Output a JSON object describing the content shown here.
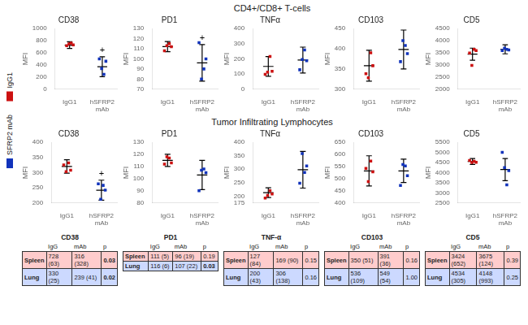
{
  "chart_data": {
    "series": [
      {
        "name": "IgG1",
        "color": "#cc1111"
      },
      {
        "name": "SFRP2 mAb",
        "color": "#1133bb"
      }
    ],
    "sections": [
      {
        "title": "CD4+/CD8+ T-cells",
        "charts": [
          {
            "type": "dot",
            "title": "CD38",
            "categories": [
              "IgG1",
              "hSFRP2\nmAb"
            ],
            "ylabel": "MFI",
            "ylim": [
              0,
              1000
            ],
            "yticks": [
              0,
              200,
              400,
              600,
              800,
              1000
            ],
            "grid": false,
            "marker": "square",
            "series": [
              {
                "color": "#cc1111",
                "values": [
                  715,
                  745,
                  760,
                  730
                ],
                "mean": 725,
                "sd": 55
              },
              {
                "color": "#1133bb",
                "values": [
                  500,
                  340,
                  245,
                  460
                ],
                "mean": 370,
                "sd": 165,
                "annotation": "+"
              }
            ]
          },
          {
            "type": "dot",
            "title": "PD1",
            "categories": [
              "IgG1",
              "hSFRP2\nmAb"
            ],
            "ylabel": "MFI",
            "ylim": [
              70,
              130
            ],
            "yticks": [
              70,
              80,
              90,
              100,
              110,
              120,
              130
            ],
            "grid": false,
            "marker": "square",
            "series": [
              {
                "color": "#cc1111",
                "values": [
                  108,
                  113,
                  115,
                  112
                ],
                "mean": 112,
                "sd": 5
              },
              {
                "color": "#1133bb",
                "values": [
                  116,
                  80,
                  90,
                  100
                ],
                "mean": 96,
                "sd": 18,
                "annotation": "+"
              }
            ]
          },
          {
            "type": "dot",
            "title": "TNFα",
            "categories": [
              "IgG1",
              "hSFRP2\nmAb"
            ],
            "ylabel": "MFI",
            "ylim": [
              0,
              400
            ],
            "yticks": [
              0,
              100,
              200,
              300,
              400
            ],
            "grid": false,
            "marker": "square",
            "series": [
              {
                "color": "#cc1111",
                "values": [
                  98,
                  112,
                  215,
                  118
                ],
                "mean": 150,
                "sd": 65
              },
              {
                "color": "#1133bb",
                "values": [
                  128,
                  195,
                  258,
                  188
                ],
                "mean": 192,
                "sd": 85
              }
            ]
          },
          {
            "type": "dot",
            "title": "CD103",
            "categories": [
              "IgG1",
              "hSFRP2\nmAb"
            ],
            "ylabel": "MFI",
            "ylim": [
              300,
              450
            ],
            "yticks": [
              300,
              350,
              400,
              450
            ],
            "grid": false,
            "marker": "square",
            "series": [
              {
                "color": "#cc1111",
                "values": [
                  338,
                  328,
                  390,
                  358
                ],
                "mean": 358,
                "sd": 38
              },
              {
                "color": "#1133bb",
                "values": [
                  368,
                  420,
                  408,
                  388
                ],
                "mean": 398,
                "sd": 48
              }
            ]
          },
          {
            "type": "dot",
            "title": "CD5",
            "categories": [
              "IgG1",
              "hSFRP2\nmAb"
            ],
            "ylabel": "MFI",
            "ylim": [
              2000,
              4500
            ],
            "yticks": [
              2000,
              2500,
              3000,
              3500,
              4000,
              4500
            ],
            "grid": false,
            "marker": "square",
            "series": [
              {
                "color": "#cc1111",
                "values": [
                  3490,
                  2980,
                  3640,
                  3590
                ],
                "mean": 3440,
                "sd": 250
              },
              {
                "color": "#1133bb",
                "values": [
                  3590,
                  3690,
                  3640,
                  3615
                ],
                "mean": 3640,
                "sd": 185
              }
            ]
          }
        ]
      },
      {
        "title": "Tumor Infiltrating Lymphocytes",
        "charts": [
          {
            "type": "dot",
            "title": "CD38",
            "categories": [
              "IgG1",
              "hSFRP2\nmAb"
            ],
            "ylabel": "MFI",
            "ylim": [
              200,
              400
            ],
            "yticks": [
              200,
              250,
              300,
              350,
              400
            ],
            "grid": false,
            "marker": "square",
            "series": [
              {
                "color": "#cc1111",
                "values": [
                  325,
                  303,
                  332,
                  308
                ],
                "mean": 320,
                "sd": 22
              },
              {
                "color": "#1133bb",
                "values": [
                  263,
                  212,
                  258,
                  242
                ],
                "mean": 242,
                "sd": 33,
                "annotation": "+"
              }
            ]
          },
          {
            "type": "dot",
            "title": "PD1",
            "categories": [
              "IgG1",
              "hSFRP2\nmAb"
            ],
            "ylabel": "MFI",
            "ylim": [
              80,
              130
            ],
            "yticks": [
              80,
              90,
              100,
              110,
              120,
              130
            ],
            "grid": false,
            "marker": "square",
            "series": [
              {
                "color": "#cc1111",
                "values": [
                  112,
                  118,
                  117,
                  113
                ],
                "mean": 115,
                "sd": 5
              },
              {
                "color": "#1133bb",
                "values": [
                  90,
                  107,
                  108,
                  105
                ],
                "mean": 103,
                "sd": 12
              }
            ]
          },
          {
            "type": "dot",
            "title": "TNFα",
            "categories": [
              "IgG1",
              "hSFRP2\nmAb"
            ],
            "ylabel": "MFI",
            "ylim": [
              175,
              400
            ],
            "yticks": [
              175,
              200,
              250,
              300,
              350,
              400
            ],
            "grid": false,
            "marker": "square",
            "series": [
              {
                "color": "#cc1111",
                "values": [
                  193,
                  203,
                  220,
                  208
                ],
                "mean": 213,
                "sd": 18
              },
              {
                "color": "#1133bb",
                "values": [
                  248,
                  358,
                  288,
                  312
                ],
                "mean": 298,
                "sd": 68
              }
            ]
          },
          {
            "type": "dot",
            "title": "CD103",
            "categories": [
              "IgG1",
              "hSFRP2\nmAb"
            ],
            "ylabel": "MFI",
            "ylim": [
              400,
              650
            ],
            "yticks": [
              400,
              450,
              500,
              550,
              600,
              650
            ],
            "grid": false,
            "marker": "square",
            "series": [
              {
                "color": "#cc1111",
                "values": [
                  542,
                  488,
                  572,
                  528
                ],
                "mean": 532,
                "sd": 62
              },
              {
                "color": "#1133bb",
                "values": [
                  472,
                  558,
                  552,
                  512
                ],
                "mean": 532,
                "sd": 48
              }
            ]
          },
          {
            "type": "dot",
            "title": "CD5",
            "categories": [
              "IgG1",
              "hSFRP2\nmAb"
            ],
            "ylabel": "MFI",
            "ylim": [
              2500,
              5500
            ],
            "yticks": [
              2500,
              3000,
              3500,
              4000,
              4500,
              5000,
              5500
            ],
            "grid": false,
            "marker": "square",
            "series": [
              {
                "color": "#cc1111",
                "values": [
                  4598,
                  4498,
                  4558,
                  4508
                ],
                "mean": 4548,
                "sd": 145
              },
              {
                "color": "#1133bb",
                "values": [
                  4998,
                  4248,
                  3398,
                  4098
                ],
                "mean": 4148,
                "sd": 545
              }
            ]
          }
        ]
      }
    ],
    "tables": [
      {
        "type": "table",
        "title": "CD38",
        "columns": [
          "IgG",
          "mAb",
          "p"
        ],
        "rows": [
          {
            "label": "Spleen",
            "values": [
              "728 (63)",
              "316 (328)",
              "0.03"
            ],
            "sig": true
          },
          {
            "label": "Lung",
            "values": [
              "330 (25)",
              "239 (41)",
              "0.02"
            ],
            "sig": true
          }
        ]
      },
      {
        "type": "table",
        "title": "PD1",
        "columns": [
          "IgG",
          "mAb",
          "p"
        ],
        "rows": [
          {
            "label": "Spleen",
            "values": [
              "111 (5)",
              "96 (19)",
              "0.19"
            ],
            "sig": false
          },
          {
            "label": "Lung",
            "values": [
              "116 (6)",
              "107 (22)",
              "0.03"
            ],
            "sig": true
          }
        ]
      },
      {
        "type": "table",
        "title": "TNF-α",
        "columns": [
          "IgG",
          "mAb",
          "p"
        ],
        "rows": [
          {
            "label": "Spleen",
            "values": [
              "127 (84)",
              "169 (90)",
              "0.15"
            ],
            "sig": false
          },
          {
            "label": "Lung",
            "values": [
              "200 (43)",
              "306 (138)",
              "0.16"
            ],
            "sig": false
          }
        ]
      },
      {
        "type": "table",
        "title": "CD103",
        "columns": [
          "IgG",
          "mAb",
          "p"
        ],
        "rows": [
          {
            "label": "Spleen",
            "values": [
              "350 (51)",
              "391 (36)",
              "0.16"
            ],
            "sig": false
          },
          {
            "label": "Lung",
            "values": [
              "536 (109)",
              "549 (54)",
              "1.00"
            ],
            "sig": false
          }
        ]
      },
      {
        "type": "table",
        "title": "CD5",
        "columns": [
          "IgG",
          "mAb",
          "p"
        ],
        "rows": [
          {
            "label": "Spleen",
            "values": [
              "3424 (652)",
              "3675 (124)",
              "0.39"
            ],
            "sig": false
          },
          {
            "label": "Lung",
            "values": [
              "4534 (305)",
              "4148 (993)",
              "0.25"
            ],
            "sig": false
          }
        ]
      }
    ]
  }
}
